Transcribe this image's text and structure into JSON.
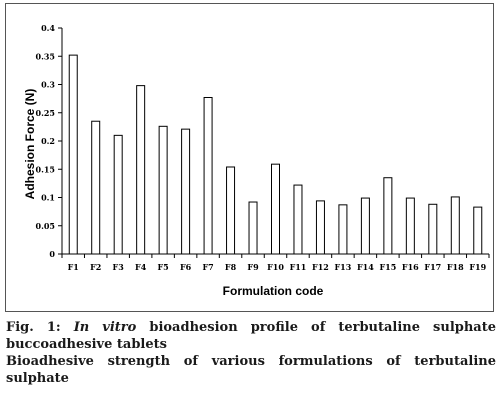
{
  "chart_data": {
    "type": "bar",
    "categories": [
      "F1",
      "F2",
      "F3",
      "F4",
      "F5",
      "F6",
      "F7",
      "F8",
      "F9",
      "F10",
      "F11",
      "F12",
      "F13",
      "F14",
      "F15",
      "F16",
      "F17",
      "F18",
      "F19"
    ],
    "values": [
      0.352,
      0.235,
      0.21,
      0.298,
      0.226,
      0.221,
      0.277,
      0.154,
      0.092,
      0.159,
      0.122,
      0.094,
      0.087,
      0.099,
      0.135,
      0.099,
      0.088,
      0.101,
      0.083
    ],
    "ylim": [
      0,
      0.4
    ],
    "yticks": [
      "0",
      "0.05",
      "0.1",
      "0.15",
      "0.2",
      "0.25",
      "0.3",
      "0.35",
      "0.4"
    ],
    "xlabel": "Formulation code",
    "ylabel": "Adhesion Force (N)",
    "bar_color": "#ffffff",
    "bar_stroke": "#000000",
    "grid": false
  },
  "caption": {
    "prefix": "Fig. 1: ",
    "italic": "In vitro",
    "rest": " bioadhesion profile of terbutaline sulphate buccoadhesive tablets",
    "line2": "Bioadhesive strength of various formulations of terbutaline sulphate"
  }
}
